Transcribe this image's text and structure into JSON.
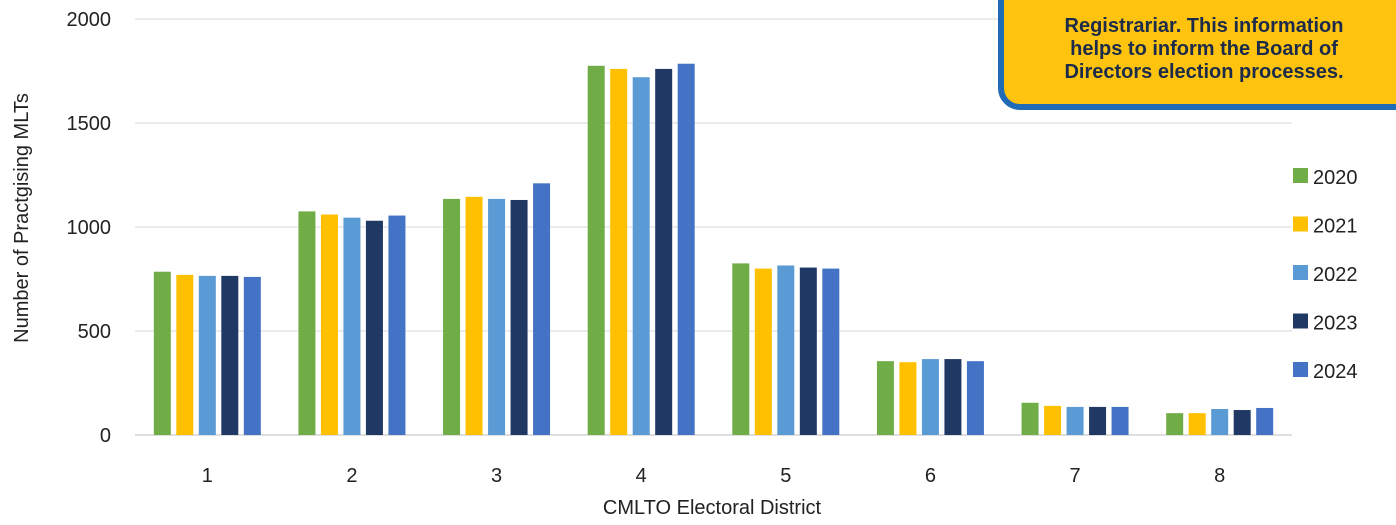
{
  "chart_data": {
    "type": "bar",
    "title": "",
    "xlabel": "CMLTO Electoral District",
    "ylabel": "Number of Practgising MLTs",
    "ylim": [
      0,
      2000
    ],
    "yticks": [
      "0",
      "500",
      "1000",
      "1500",
      "2000"
    ],
    "categories": [
      "1",
      "2",
      "3",
      "4",
      "5",
      "6",
      "7",
      "8"
    ],
    "grid": "horizontal",
    "legend_position": "right",
    "series": [
      {
        "name": "2020",
        "color": "#70ad47",
        "values": [
          785,
          1075,
          1135,
          1775,
          825,
          355,
          155,
          105
        ]
      },
      {
        "name": "2021",
        "color": "#ffc000",
        "values": [
          770,
          1060,
          1145,
          1760,
          800,
          350,
          140,
          105
        ]
      },
      {
        "name": "2022",
        "color": "#5b9bd5",
        "values": [
          765,
          1045,
          1135,
          1720,
          815,
          365,
          135,
          125
        ]
      },
      {
        "name": "2023",
        "color": "#203864",
        "values": [
          765,
          1030,
          1130,
          1760,
          805,
          365,
          135,
          120
        ]
      },
      {
        "name": "2024",
        "color": "#4472c4",
        "values": [
          760,
          1055,
          1210,
          1785,
          800,
          355,
          135,
          130
        ]
      }
    ]
  },
  "callout": {
    "lines": [
      "Registrariar. This information",
      "helps to inform the Board of",
      "Directors election processes."
    ]
  }
}
